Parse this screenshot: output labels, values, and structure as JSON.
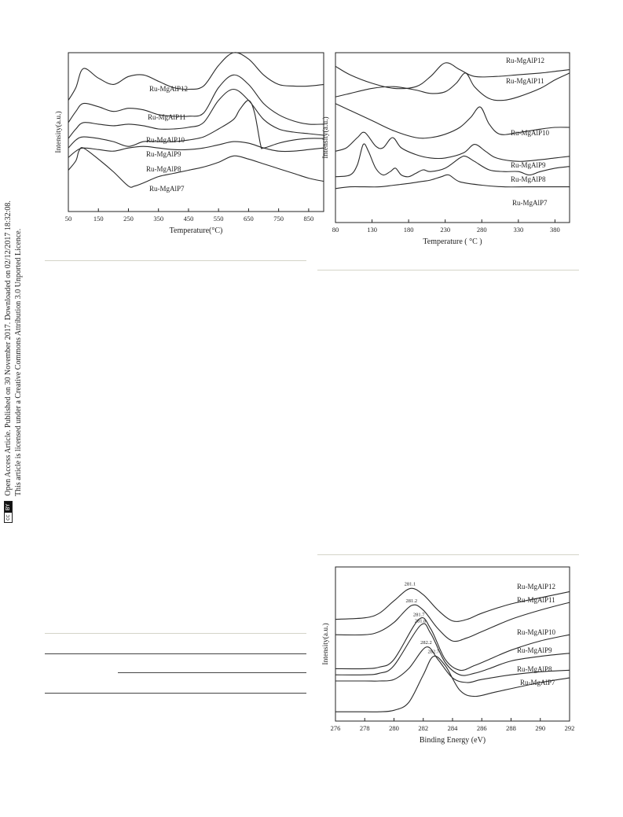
{
  "sidebar": {
    "line1": "Open Access Article. Published on 30 November 2017. Downloaded on 02/12/2017 18:32:08.",
    "line2": "This article is licensed under a Creative Commons Attribution 3.0 Unported Licence.",
    "license_badge": [
      "cc",
      "BY"
    ]
  },
  "chart_data": [
    {
      "type": "line",
      "xlabel": "Temperature(°C)",
      "ylabel": "Intensity(a.u.)",
      "xlim": [
        50,
        900
      ],
      "xticks": [
        "50",
        "150",
        "250",
        "350",
        "450",
        "550",
        "650",
        "750",
        "850"
      ],
      "series": [
        {
          "name": "Ru-MgAlP12",
          "x": [
            50,
            75,
            100,
            150,
            200,
            250,
            300,
            350,
            400,
            450,
            500,
            550,
            600,
            650,
            700,
            750,
            800,
            850,
            900
          ],
          "y": [
            0.7,
            0.78,
            0.9,
            0.84,
            0.8,
            0.85,
            0.86,
            0.82,
            0.78,
            0.77,
            0.79,
            0.92,
            1.0,
            0.96,
            0.86,
            0.8,
            0.79,
            0.79,
            0.8
          ]
        },
        {
          "name": "Ru-MgAlP11",
          "x": [
            50,
            75,
            100,
            150,
            200,
            250,
            300,
            350,
            400,
            450,
            500,
            550,
            600,
            650,
            700,
            750,
            800,
            850,
            900
          ],
          "y": [
            0.56,
            0.63,
            0.68,
            0.66,
            0.63,
            0.65,
            0.64,
            0.61,
            0.6,
            0.6,
            0.62,
            0.78,
            0.86,
            0.8,
            0.68,
            0.61,
            0.57,
            0.55,
            0.55
          ]
        },
        {
          "name": "Ru-MgAlP10",
          "x": [
            50,
            75,
            100,
            150,
            200,
            250,
            300,
            350,
            400,
            450,
            500,
            550,
            600,
            650,
            700,
            750,
            800,
            850,
            900
          ],
          "y": [
            0.46,
            0.52,
            0.56,
            0.55,
            0.54,
            0.55,
            0.54,
            0.52,
            0.52,
            0.53,
            0.56,
            0.7,
            0.77,
            0.7,
            0.58,
            0.52,
            0.5,
            0.49,
            0.48
          ]
        },
        {
          "name": "Ru-MgAlP9",
          "x": [
            50,
            75,
            100,
            150,
            200,
            250,
            300,
            350,
            400,
            450,
            500,
            550,
            600,
            620,
            650,
            670,
            690,
            700,
            750,
            800,
            850,
            900
          ],
          "y": [
            0.4,
            0.45,
            0.47,
            0.46,
            0.44,
            0.41,
            0.44,
            0.44,
            0.44,
            0.45,
            0.47,
            0.52,
            0.58,
            0.64,
            0.7,
            0.62,
            0.42,
            0.4,
            0.43,
            0.45,
            0.46,
            0.46
          ]
        },
        {
          "name": "Ru-MgAlP8",
          "x": [
            50,
            75,
            100,
            150,
            200,
            250,
            300,
            350,
            400,
            450,
            500,
            550,
            600,
            650,
            700,
            750,
            800,
            850,
            900
          ],
          "y": [
            0.34,
            0.38,
            0.4,
            0.39,
            0.38,
            0.4,
            0.41,
            0.4,
            0.39,
            0.39,
            0.4,
            0.42,
            0.44,
            0.43,
            0.4,
            0.38,
            0.38,
            0.39,
            0.4
          ]
        },
        {
          "name": "Ru-MgAlP7",
          "x": [
            50,
            75,
            85,
            100,
            150,
            200,
            250,
            270,
            300,
            350,
            400,
            450,
            500,
            550,
            600,
            650,
            700,
            750,
            800,
            850,
            900
          ],
          "y": [
            0.26,
            0.32,
            0.38,
            0.4,
            0.33,
            0.25,
            0.16,
            0.16,
            0.18,
            0.22,
            0.24,
            0.26,
            0.28,
            0.31,
            0.35,
            0.33,
            0.3,
            0.27,
            0.24,
            0.21,
            0.19
          ]
        }
      ]
    },
    {
      "type": "line",
      "xlabel": "Temperature ( °C )",
      "ylabel": "Intensity(a.u.)",
      "xlim": [
        80,
        400
      ],
      "xticks": [
        "80",
        "130",
        "180",
        "230",
        "280",
        "330",
        "380"
      ],
      "series": [
        {
          "name": "Ru-MgAlP12",
          "x": [
            80,
            100,
            130,
            160,
            190,
            210,
            230,
            250,
            270,
            300,
            330,
            360,
            380,
            400
          ],
          "y": [
            0.92,
            0.87,
            0.82,
            0.79,
            0.8,
            0.86,
            0.94,
            0.9,
            0.86,
            0.86,
            0.87,
            0.88,
            0.89,
            0.9
          ]
        },
        {
          "name": "Ru-MgAlP11",
          "x": [
            80,
            100,
            130,
            160,
            190,
            210,
            230,
            245,
            258,
            270,
            290,
            310,
            330,
            360,
            380,
            400
          ],
          "y": [
            0.74,
            0.76,
            0.79,
            0.8,
            0.78,
            0.76,
            0.77,
            0.82,
            0.88,
            0.8,
            0.73,
            0.72,
            0.74,
            0.79,
            0.84,
            0.88
          ]
        },
        {
          "name": "Ru-MgAlP10",
          "x": [
            80,
            100,
            130,
            160,
            190,
            210,
            230,
            250,
            265,
            278,
            290,
            305,
            330,
            360,
            380,
            400
          ],
          "y": [
            0.7,
            0.66,
            0.6,
            0.54,
            0.5,
            0.5,
            0.52,
            0.56,
            0.62,
            0.68,
            0.58,
            0.52,
            0.53,
            0.55,
            0.56,
            0.56
          ]
        },
        {
          "name": "Ru-MgAlP9",
          "x": [
            80,
            95,
            110,
            120,
            135,
            145,
            158,
            170,
            190,
            210,
            230,
            255,
            270,
            285,
            300,
            330,
            360,
            380,
            400
          ],
          "y": [
            0.42,
            0.44,
            0.5,
            0.53,
            0.45,
            0.44,
            0.5,
            0.44,
            0.4,
            0.38,
            0.38,
            0.41,
            0.46,
            0.42,
            0.38,
            0.36,
            0.37,
            0.38,
            0.39
          ]
        },
        {
          "name": "Ru-MgAlP8",
          "x": [
            80,
            100,
            110,
            118,
            125,
            135,
            145,
            155,
            162,
            170,
            180,
            190,
            200,
            210,
            230,
            250,
            258,
            270,
            290,
            310,
            330,
            345,
            360,
            380,
            400
          ],
          "y": [
            0.27,
            0.28,
            0.34,
            0.46,
            0.42,
            0.32,
            0.28,
            0.3,
            0.32,
            0.28,
            0.27,
            0.29,
            0.31,
            0.3,
            0.32,
            0.38,
            0.39,
            0.36,
            0.31,
            0.3,
            0.3,
            0.28,
            0.3,
            0.32,
            0.33
          ]
        },
        {
          "name": "Ru-MgAlP7",
          "x": [
            80,
            100,
            120,
            140,
            160,
            180,
            195,
            210,
            225,
            235,
            250,
            280,
            310,
            340,
            370,
            400
          ],
          "y": [
            0.2,
            0.21,
            0.21,
            0.21,
            0.22,
            0.23,
            0.24,
            0.25,
            0.27,
            0.28,
            0.24,
            0.22,
            0.21,
            0.21,
            0.21,
            0.21
          ]
        }
      ]
    },
    {
      "type": "line",
      "xlabel": "Binding Energy (eV)",
      "ylabel": "Intensity(a.u.)",
      "xlim": [
        276,
        292
      ],
      "xticks": [
        "276",
        "278",
        "280",
        "282",
        "284",
        "286",
        "288",
        "290",
        "292"
      ],
      "series": [
        {
          "name": "Ru-MgAlP12",
          "peak_label": "281.1",
          "peak": 281.1,
          "x": [
            276,
            278,
            279,
            280,
            281.1,
            282,
            283,
            284,
            285,
            286,
            288,
            290,
            292
          ],
          "y": [
            0.66,
            0.67,
            0.7,
            0.78,
            0.86,
            0.82,
            0.72,
            0.65,
            0.66,
            0.7,
            0.76,
            0.8,
            0.84
          ]
        },
        {
          "name": "Ru-MgAlP11",
          "peak_label": "281.2",
          "peak": 281.2,
          "x": [
            276,
            278,
            279,
            280,
            281.2,
            282,
            283,
            284,
            285,
            286,
            288,
            290,
            292
          ],
          "y": [
            0.56,
            0.56,
            0.58,
            0.64,
            0.75,
            0.72,
            0.6,
            0.52,
            0.54,
            0.58,
            0.66,
            0.72,
            0.77
          ]
        },
        {
          "name": "Ru-MgAlP10",
          "peak_label": "281.7",
          "peak": 281.7,
          "x": [
            276,
            278,
            279,
            280,
            281.7,
            282.5,
            283.5,
            284.5,
            285.5,
            286.5,
            288,
            290,
            292
          ],
          "y": [
            0.34,
            0.34,
            0.35,
            0.4,
            0.66,
            0.6,
            0.4,
            0.33,
            0.36,
            0.4,
            0.46,
            0.52,
            0.56
          ]
        },
        {
          "name": "Ru-MgAlP9",
          "peak_label": "281.8",
          "peak": 281.8,
          "x": [
            276,
            278,
            279,
            280,
            281.8,
            282.5,
            283.5,
            284.5,
            285.5,
            286.5,
            288,
            290,
            292
          ],
          "y": [
            0.3,
            0.3,
            0.31,
            0.36,
            0.62,
            0.57,
            0.38,
            0.3,
            0.31,
            0.34,
            0.39,
            0.42,
            0.44
          ]
        },
        {
          "name": "Ru-MgAlP8",
          "peak_label": "282.2",
          "peak": 282.2,
          "x": [
            276,
            278,
            279,
            280,
            281,
            282.2,
            283,
            284,
            285,
            286,
            288,
            290,
            292
          ],
          "y": [
            0.26,
            0.26,
            0.26,
            0.27,
            0.34,
            0.48,
            0.4,
            0.28,
            0.25,
            0.27,
            0.3,
            0.32,
            0.33
          ]
        },
        {
          "name": "Ru-MgAlP7",
          "peak_label": "282.7",
          "peak": 282.7,
          "x": [
            276,
            278,
            279,
            280,
            281,
            282,
            282.7,
            283.5,
            284.5,
            285.5,
            287,
            290,
            292
          ],
          "y": [
            0.06,
            0.06,
            0.06,
            0.07,
            0.12,
            0.3,
            0.42,
            0.36,
            0.2,
            0.16,
            0.19,
            0.25,
            0.28
          ]
        }
      ]
    }
  ]
}
